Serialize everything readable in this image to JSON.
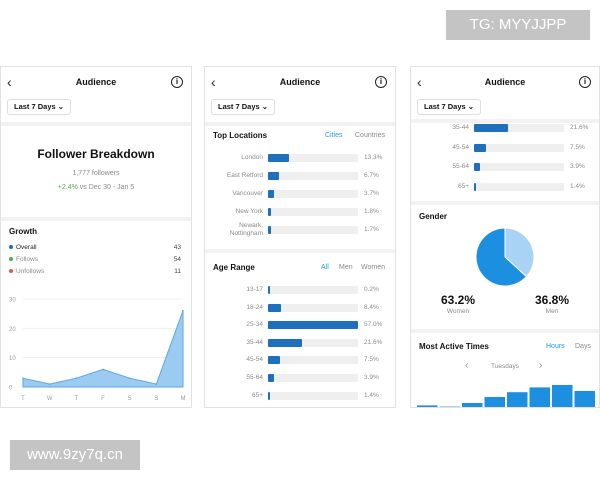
{
  "watermarks": {
    "top": "TG: MYYJJPP",
    "bottom": "www.9zy7q.cn"
  },
  "common": {
    "title": "Audience",
    "back": "‹",
    "info": "i",
    "date_filter": "Last 7 Days ⌄"
  },
  "panel1": {
    "heading": "Follower Breakdown",
    "followers": "1,777 followers",
    "change": "+2.4%",
    "change_suffix": " vs Dec 30 - Jan 5",
    "growth_title": "Growth",
    "legend": [
      {
        "label": "Overall",
        "value": "43",
        "color": "#1f6fbf"
      },
      {
        "label": "Follows",
        "value": "54",
        "color": "#4caf50"
      },
      {
        "label": "Unfollows",
        "value": "11",
        "color": "#e05a4f"
      }
    ],
    "chart_data": {
      "type": "area",
      "categories": [
        "T",
        "W",
        "T",
        "F",
        "S",
        "S",
        "M"
      ],
      "values": [
        3,
        1,
        3,
        6,
        3,
        1,
        26
      ],
      "ylim": [
        0,
        30
      ],
      "yticks": [
        "30",
        "20",
        "10",
        "0"
      ],
      "color": "#9ccbf2"
    }
  },
  "panel2": {
    "top_locations_title": "Top Locations",
    "loc_tabs": [
      "Cities",
      "Countries"
    ],
    "locations": [
      {
        "label": "London",
        "pct": "13.3%",
        "v": 13.3
      },
      {
        "label": "East Retford",
        "pct": "6.7%",
        "v": 6.7
      },
      {
        "label": "Vancouver",
        "pct": "3.7%",
        "v": 3.7
      },
      {
        "label": "New York",
        "pct": "1.8%",
        "v": 1.8
      },
      {
        "label": "Newark, Nottingham",
        "pct": "1.7%",
        "v": 1.7
      }
    ],
    "age_title": "Age Range",
    "age_tabs": [
      "All",
      "Men",
      "Women"
    ],
    "ages": [
      {
        "label": "13-17",
        "pct": "0.2%",
        "v": 0.2
      },
      {
        "label": "18-24",
        "pct": "8.4%",
        "v": 8.4
      },
      {
        "label": "25-34",
        "pct": "57.0%",
        "v": 57.0
      },
      {
        "label": "35-44",
        "pct": "21.6%",
        "v": 21.6
      },
      {
        "label": "45-54",
        "pct": "7.5%",
        "v": 7.5
      },
      {
        "label": "55-64",
        "pct": "3.9%",
        "v": 3.9
      },
      {
        "label": "65+",
        "pct": "1.4%",
        "v": 1.4
      }
    ]
  },
  "panel3": {
    "ages": [
      {
        "label": "35-44",
        "pct": "21.6%",
        "v": 21.6
      },
      {
        "label": "45-54",
        "pct": "7.5%",
        "v": 7.5
      },
      {
        "label": "55-64",
        "pct": "3.9%",
        "v": 3.9
      },
      {
        "label": "65+",
        "pct": "1.4%",
        "v": 1.4
      }
    ],
    "gender_title": "Gender",
    "women_pct": "63.2%",
    "women_label": "Women",
    "women_v": 63.2,
    "men_pct": "36.8%",
    "men_label": "Men",
    "men_v": 36.8,
    "active_title": "Most Active Times",
    "active_tabs": [
      "Hours",
      "Days"
    ],
    "day": "Tuesdays",
    "prev": "‹",
    "next": "›",
    "chart_data": {
      "type": "bar",
      "values": [
        3,
        2,
        5,
        10,
        14,
        18,
        20,
        15
      ],
      "ylim": [
        0,
        20
      ]
    }
  }
}
